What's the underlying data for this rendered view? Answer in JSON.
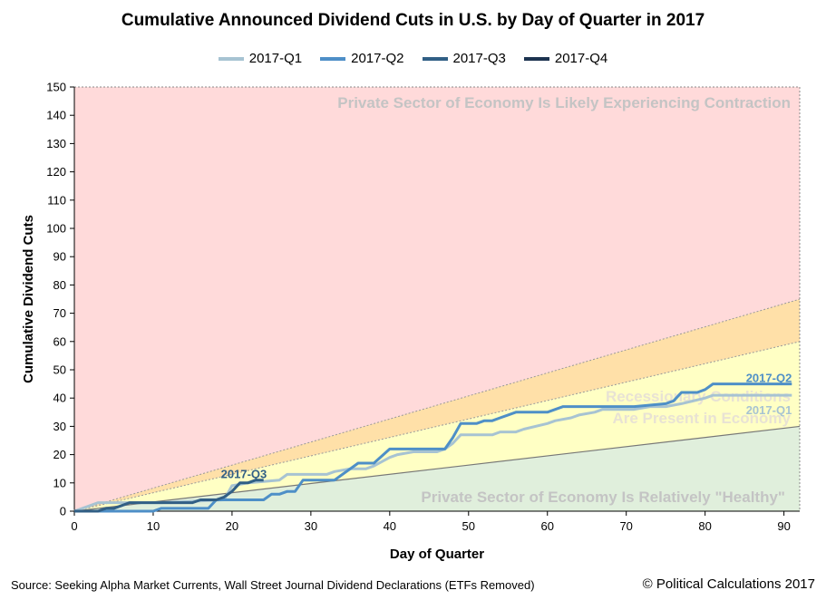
{
  "chart_data": {
    "type": "line",
    "title": "Cumulative Announced Dividend Cuts in U.S. by Day of Quarter in 2017",
    "xlabel": "Day of Quarter",
    "ylabel": "Cumulative Dividend Cuts",
    "xlim": [
      0,
      92
    ],
    "ylim": [
      0,
      150
    ],
    "x_ticks": [
      0,
      10,
      20,
      30,
      40,
      50,
      60,
      70,
      80,
      90
    ],
    "y_ticks": [
      0,
      10,
      20,
      30,
      40,
      50,
      60,
      70,
      80,
      90,
      100,
      110,
      120,
      130,
      140,
      150
    ],
    "grid": false,
    "legend_position": "top",
    "zones": [
      {
        "label": "Private Sector of Economy Is Likely Experiencing Contraction",
        "color": "#ffdada",
        "text_color": "#c4c4c4",
        "lower_slope": 0.815,
        "upper_slope": null
      },
      {
        "label_line1": "Recessionary Conditions",
        "label_line2": "Are Present in Economy",
        "color": "#ffe0a8",
        "text_color": "#e8e2d4",
        "lower_slope": 0.652,
        "upper_slope": 0.815
      },
      {
        "label": "",
        "color": "#ffffc4",
        "lower_slope": 0.326,
        "upper_slope": 0.652
      },
      {
        "label": "Private Sector of Economy Is Relatively \"Healthy\"",
        "color": "#e0efdc",
        "text_color": "#c4c4c4",
        "lower_slope": 0,
        "upper_slope": 0.326
      }
    ],
    "series": [
      {
        "name": "2017-Q1",
        "color": "#a7c3d2",
        "x": [
          0,
          2,
          3,
          7,
          8,
          11,
          19,
          20,
          22,
          26,
          27,
          32,
          33,
          35,
          37,
          38,
          40,
          41,
          43,
          46,
          47,
          48,
          49,
          53,
          54,
          56,
          57,
          60,
          61,
          63,
          64,
          66,
          67,
          70,
          71,
          73,
          75,
          77,
          80,
          81,
          91
        ],
        "y": [
          0,
          2,
          3,
          3,
          3,
          3,
          4,
          9,
          10,
          11,
          13,
          13,
          14,
          15,
          15,
          16,
          19,
          20,
          21,
          21,
          22,
          24,
          27,
          27,
          28,
          28,
          29,
          31,
          32,
          33,
          34,
          35,
          36,
          36,
          36,
          37,
          37,
          38,
          40,
          41,
          41
        ]
      },
      {
        "name": "2017-Q2",
        "color": "#4e8fc7",
        "x": [
          0,
          10,
          11,
          17,
          18,
          24,
          25,
          26,
          27,
          28,
          29,
          33,
          34,
          36,
          38,
          40,
          47,
          48,
          49,
          51,
          52,
          53,
          54,
          55,
          56,
          57,
          60,
          61,
          62,
          68,
          70,
          71,
          75,
          76,
          77,
          78,
          79,
          80,
          81,
          91
        ],
        "y": [
          0,
          0,
          1,
          1,
          4,
          4,
          6,
          6,
          7,
          7,
          11,
          11,
          13,
          17,
          17,
          22,
          22,
          26,
          31,
          31,
          32,
          32,
          33,
          34,
          35,
          35,
          35,
          36,
          37,
          37,
          37,
          37,
          38,
          39,
          42,
          42,
          42,
          43,
          45,
          45
        ]
      },
      {
        "name": "2017-Q3",
        "color": "#315f85",
        "x": [
          0,
          3,
          4,
          5,
          6,
          7,
          8,
          9,
          12,
          15,
          16,
          17,
          18,
          19,
          20,
          21,
          22,
          23,
          24
        ],
        "y": [
          0,
          0,
          1,
          1,
          2,
          3,
          3,
          3,
          3,
          3,
          4,
          4,
          4,
          5,
          7,
          10,
          10,
          11,
          11
        ]
      },
      {
        "name": "2017-Q4",
        "color": "#1c3350",
        "x": [],
        "y": []
      }
    ],
    "annotations": [
      {
        "text": "2017-Q2",
        "x": 91,
        "y": 47,
        "anchor": "end",
        "color": "#4e8fc7"
      },
      {
        "text": "2017-Q1",
        "x": 91,
        "y": 35.5,
        "anchor": "end",
        "color": "#a7c3d2"
      },
      {
        "text": "2017-Q3",
        "x": 21.5,
        "y": 13,
        "anchor": "middle",
        "color": "#315f85"
      }
    ]
  },
  "footer": {
    "source": "Source: Seeking Alpha Market Currents, Wall Street Journal Dividend Declarations (ETFs Removed)",
    "copyright": "© Political Calculations 2017"
  }
}
